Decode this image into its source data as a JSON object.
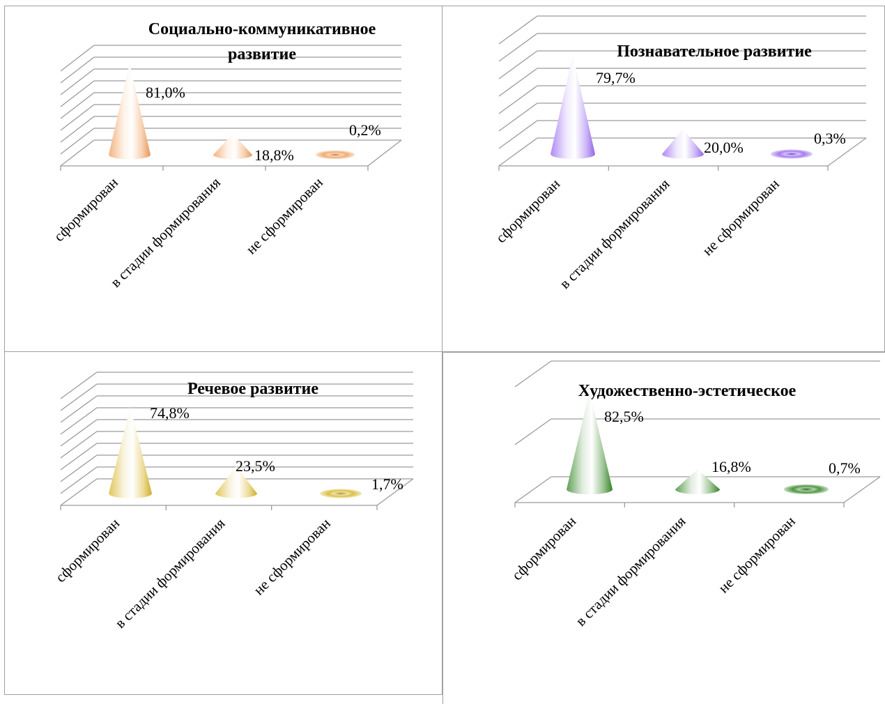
{
  "chart_data": [
    {
      "type": "bar",
      "style": "3d-cone",
      "title": "Социально-коммуникативное развитие",
      "title_lines": [
        "Социально-коммуникативное",
        "развитие"
      ],
      "categories": [
        "сформирован",
        "в стадии формирования",
        "не сформирован"
      ],
      "values": [
        81.0,
        18.8,
        0.2
      ],
      "data_labels": [
        "81,0%",
        "18,8%",
        "0,2%"
      ],
      "color": "#f0a060",
      "grid": true
    },
    {
      "type": "bar",
      "style": "3d-cone",
      "title": "Познавательное развитие",
      "title_lines": [
        "Познавательное развитие"
      ],
      "categories": [
        "сформирован",
        "в стадии формирования",
        "не сформирован"
      ],
      "values": [
        79.7,
        20.0,
        0.3
      ],
      "data_labels": [
        "79,7%",
        "20,0%",
        "0,3%"
      ],
      "color": "#9b6cf0",
      "grid": true
    },
    {
      "type": "bar",
      "style": "3d-cone",
      "title": "Речевое развитие",
      "title_lines": [
        "Речевое развитие"
      ],
      "categories": [
        "сформирован",
        "в стадии формирования",
        "не сформирован"
      ],
      "values": [
        74.8,
        23.5,
        1.7
      ],
      "data_labels": [
        "74,8%",
        "23,5%",
        "1,7%"
      ],
      "color": "#d8b830",
      "grid": true
    },
    {
      "type": "bar",
      "style": "3d-cone",
      "title": "Художественно-эстетическое",
      "title_lines": [
        "Художественно-эстетическое"
      ],
      "categories": [
        "сформирован",
        "в стадии формирования",
        "не сформирован"
      ],
      "values": [
        82.5,
        16.8,
        0.7
      ],
      "data_labels": [
        "82,5%",
        "16,8%",
        "0,7%"
      ],
      "color": "#3a8a2a",
      "grid": true
    }
  ]
}
